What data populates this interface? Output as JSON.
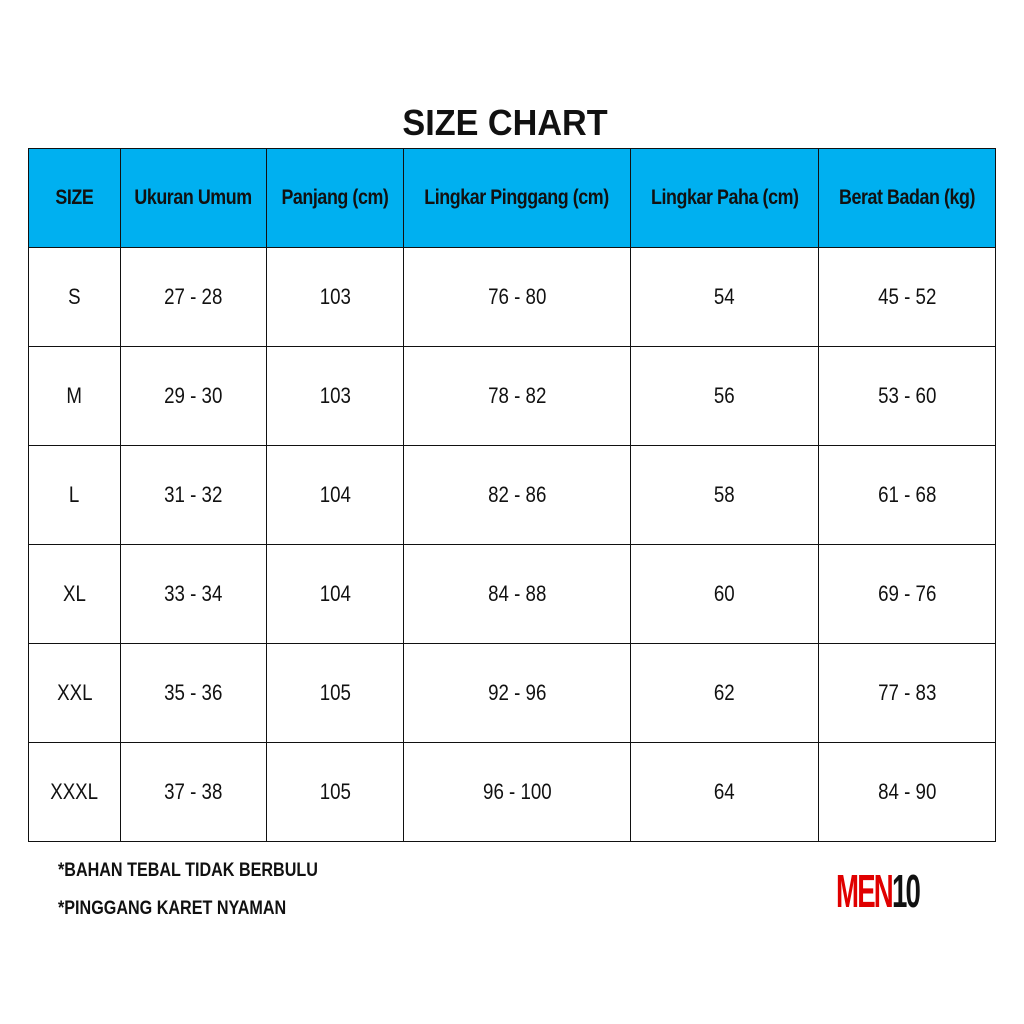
{
  "title": "SIZE CHART",
  "headers": [
    "SIZE",
    "Ukuran Umum",
    "Panjang (cm)",
    "Lingkar Pinggang (cm)",
    "Lingkar Paha (cm)",
    "Berat Badan (kg)"
  ],
  "rows": [
    [
      "S",
      "27 - 28",
      "103",
      "76 - 80",
      "54",
      "45 - 52"
    ],
    [
      "M",
      "29 - 30",
      "103",
      "78 - 82",
      "56",
      "53 - 60"
    ],
    [
      "L",
      "31 - 32",
      "104",
      "82 - 86",
      "58",
      "61 - 68"
    ],
    [
      "XL",
      "33 - 34",
      "104",
      "84 - 88",
      "60",
      "69 - 76"
    ],
    [
      "XXL",
      "35 - 36",
      "105",
      "92 - 96",
      "62",
      "77 - 83"
    ],
    [
      "XXXL",
      "37 - 38",
      "105",
      "96 - 100",
      "64",
      "84 - 90"
    ]
  ],
  "notes": [
    "*BAHAN TEBAL TIDAK BERBULU",
    "*PINGGANG KARET NYAMAN"
  ],
  "logo": {
    "part1": "MEN",
    "part2": "10"
  },
  "colors": {
    "header_bg": "#00B0F0",
    "logo_red": "#E00000"
  }
}
